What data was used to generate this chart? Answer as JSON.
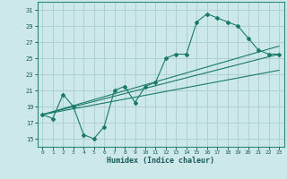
{
  "xlabel": "Humidex (Indice chaleur)",
  "ylabel": "",
  "bg_color": "#cce8e8",
  "grid_color": "#b0d0d0",
  "line_color": "#1a7a6a",
  "xlim": [
    -0.5,
    23.5
  ],
  "ylim": [
    14,
    32
  ],
  "xticks": [
    0,
    1,
    2,
    3,
    4,
    5,
    6,
    7,
    8,
    9,
    10,
    11,
    12,
    13,
    14,
    15,
    16,
    17,
    18,
    19,
    20,
    21,
    22,
    23
  ],
  "yticks": [
    15,
    17,
    19,
    21,
    23,
    25,
    27,
    29,
    31
  ],
  "series1_x": [
    0,
    1,
    2,
    3,
    4,
    5,
    6,
    7,
    8,
    9,
    10,
    11,
    12,
    13,
    14,
    15,
    16,
    17,
    18,
    19,
    20,
    21,
    22,
    23
  ],
  "series1_y": [
    18.0,
    17.5,
    20.5,
    19.0,
    15.5,
    15.0,
    16.5,
    21.0,
    21.5,
    19.5,
    21.5,
    22.0,
    25.0,
    25.5,
    25.5,
    29.5,
    30.5,
    30.0,
    29.5,
    29.0,
    27.5,
    26.0,
    25.5,
    25.5
  ],
  "series2_x": [
    0,
    23
  ],
  "series2_y": [
    18.0,
    25.5
  ],
  "series3_x": [
    0,
    23
  ],
  "series3_y": [
    18.0,
    26.5
  ],
  "series4_x": [
    0,
    23
  ],
  "series4_y": [
    18.0,
    23.5
  ]
}
